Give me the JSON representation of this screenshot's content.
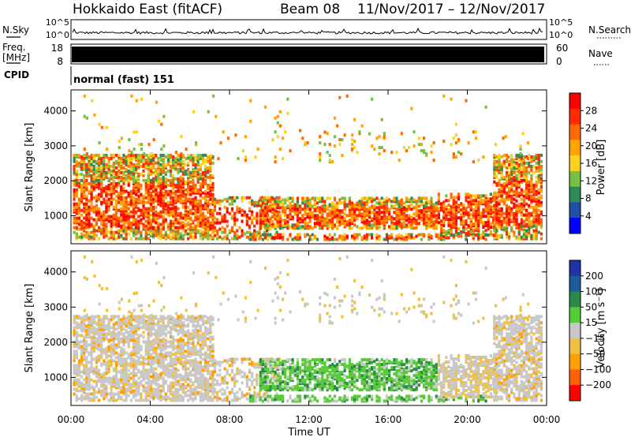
{
  "header": {
    "station": "Hokkaido East (fitACF)",
    "beam": "Beam 08",
    "date_range": "11/Nov/2017 – 12/Nov/2017"
  },
  "noise_panel": {
    "left_label": "N.Sky",
    "right_label": "N.Search",
    "ticks": [
      "10^5",
      "10^0"
    ]
  },
  "freq_panel": {
    "left_label": "Freq.",
    "left_unit": "[MHz]",
    "left_ticks": [
      "18",
      "8"
    ],
    "right_label": "Nave",
    "right_ticks": [
      "60",
      "0"
    ]
  },
  "cpid_panel": {
    "label": "CPID",
    "mode": "normal (fast) 151"
  },
  "colors": {
    "power_scale": [
      "#0000ff",
      "#1f4fa8",
      "#2e8b57",
      "#76c043",
      "#ffd21f",
      "#ffa500",
      "#ff6a00",
      "#ff2a00",
      "#ff0000"
    ],
    "velocity_scale": [
      "#2233aa",
      "#1c5c9c",
      "#2a8a4a",
      "#55cc33",
      "#c8c8c8",
      "#f0c040",
      "#ffa000",
      "#ff6000",
      "#ff0000"
    ]
  },
  "chart_data": [
    {
      "type": "heatmap",
      "title": "",
      "xlabel": "Time UT",
      "ylabel": "Slant Range [km]",
      "x_ticks": [
        "00:00",
        "04:00",
        "08:00",
        "12:00",
        "16:00",
        "20:00",
        "00:00"
      ],
      "xlim": [
        0,
        24
      ],
      "y_ticks": [
        "1000",
        "2000",
        "3000",
        "4000"
      ],
      "ylim": [
        200,
        4600
      ],
      "colorbar": {
        "label": "Power [dB]",
        "ticks": [
          "4",
          "8",
          "12",
          "16",
          "20",
          "24",
          "28"
        ],
        "range": [
          0,
          32
        ]
      }
    },
    {
      "type": "heatmap",
      "title": "",
      "xlabel": "Time UT",
      "ylabel": "Slant Range [km]",
      "x_ticks": [
        "00:00",
        "04:00",
        "08:00",
        "12:00",
        "16:00",
        "20:00",
        "00:00"
      ],
      "xlim": [
        0,
        24
      ],
      "y_ticks": [
        "1000",
        "2000",
        "3000",
        "4000"
      ],
      "ylim": [
        200,
        4600
      ],
      "colorbar": {
        "label": "Velocity [m s⁻¹]",
        "ticks": [
          "200",
          "100",
          "50",
          "15",
          "−15",
          "−50",
          "−100",
          "−200"
        ],
        "range": [
          -250,
          250
        ]
      }
    }
  ]
}
